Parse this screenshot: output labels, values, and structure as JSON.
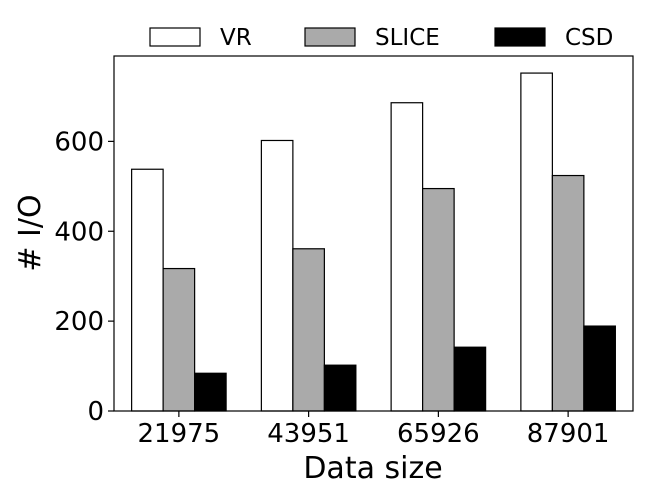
{
  "chart_data": {
    "type": "bar",
    "title": "",
    "xlabel": "Data size",
    "ylabel": "# I/O",
    "categories": [
      "21975",
      "43951",
      "65926",
      "87901"
    ],
    "series": [
      {
        "name": "VR",
        "values": [
          538,
          602,
          686,
          752
        ],
        "color": "#ffffff"
      },
      {
        "name": "SLICE",
        "values": [
          317,
          361,
          495,
          524
        ],
        "color": "#aaaaaa"
      },
      {
        "name": "CSD",
        "values": [
          84,
          102,
          142,
          189
        ],
        "color": "#000000"
      }
    ],
    "ylim": [
      0,
      790
    ],
    "yticks": [
      0,
      200,
      400,
      600
    ],
    "grid": false,
    "legend_position": "top (above plot)"
  }
}
